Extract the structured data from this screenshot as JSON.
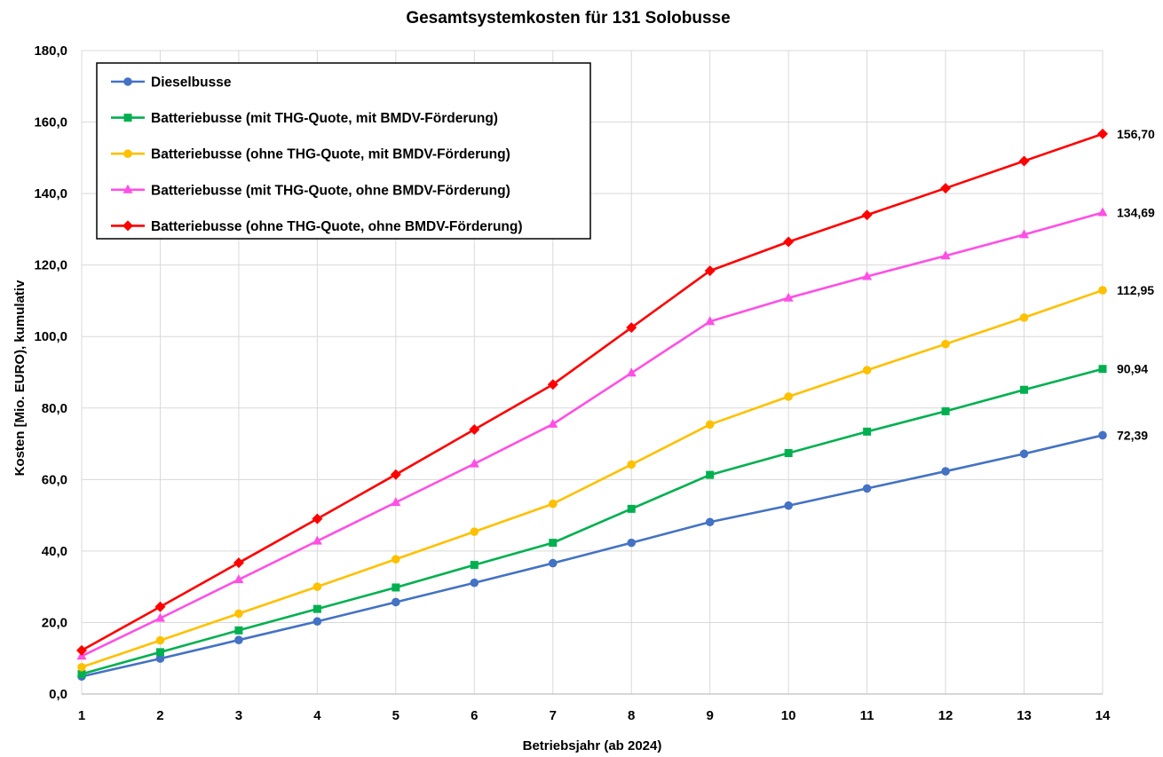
{
  "chart_data": {
    "type": "line",
    "title": "Gesamtsystemkosten für 131 Solobusse",
    "xlabel": "Betriebsjahr (ab 2024)",
    "ylabel": "Kosten [Mio. EURO), kumulativ",
    "x": [
      1,
      2,
      3,
      4,
      5,
      6,
      7,
      8,
      9,
      10,
      11,
      12,
      13,
      14
    ],
    "ylim": [
      0,
      180
    ],
    "ytick_labels": [
      "0,0",
      "20,0",
      "40,0",
      "60,0",
      "80,0",
      "100,0",
      "120,0",
      "140,0",
      "160,0",
      "180,0"
    ],
    "grid": true,
    "legend_position": "top-left",
    "series": [
      {
        "name": "Dieselbusse",
        "color": "#4472c4",
        "marker": "circle",
        "values": [
          4.9,
          9.9,
          15.1,
          20.3,
          25.7,
          31.1,
          36.6,
          42.3,
          48.1,
          52.7,
          57.5,
          62.3,
          67.2,
          72.39
        ],
        "end_label": "72,39"
      },
      {
        "name": "Batteriebusse (mit THG-Quote, mit BMDV-Förderung)",
        "color": "#00b050",
        "marker": "square",
        "values": [
          5.6,
          11.7,
          17.8,
          23.8,
          29.8,
          36.1,
          42.3,
          51.8,
          61.3,
          67.4,
          73.4,
          79.1,
          85.1,
          90.94
        ],
        "end_label": "90,94"
      },
      {
        "name": "Batteriebusse (ohne THG-Quote, mit BMDV-Förderung)",
        "color": "#ffc000",
        "marker": "circle",
        "values": [
          7.5,
          15.0,
          22.5,
          30.0,
          37.7,
          45.4,
          53.2,
          64.2,
          75.4,
          83.2,
          90.6,
          97.9,
          105.3,
          112.95
        ],
        "end_label": "112,95"
      },
      {
        "name": "Batteriebusse (mit THG-Quote, ohne BMDV-Förderung)",
        "color": "#ff4fe5",
        "marker": "triangle",
        "values": [
          10.6,
          21.2,
          32.0,
          42.8,
          53.6,
          64.4,
          75.5,
          89.8,
          104.2,
          110.8,
          116.8,
          122.6,
          128.5,
          134.69
        ],
        "end_label": "134,69"
      },
      {
        "name": "Batteriebusse (ohne THG-Quote, ohne BMDV-Förderung)",
        "color": "#ff0000",
        "marker": "diamond",
        "values": [
          12.2,
          24.4,
          36.7,
          49.0,
          61.4,
          74.0,
          86.6,
          102.5,
          118.4,
          126.5,
          134.0,
          141.5,
          149.1,
          156.7
        ],
        "end_label": "156,70"
      }
    ]
  }
}
